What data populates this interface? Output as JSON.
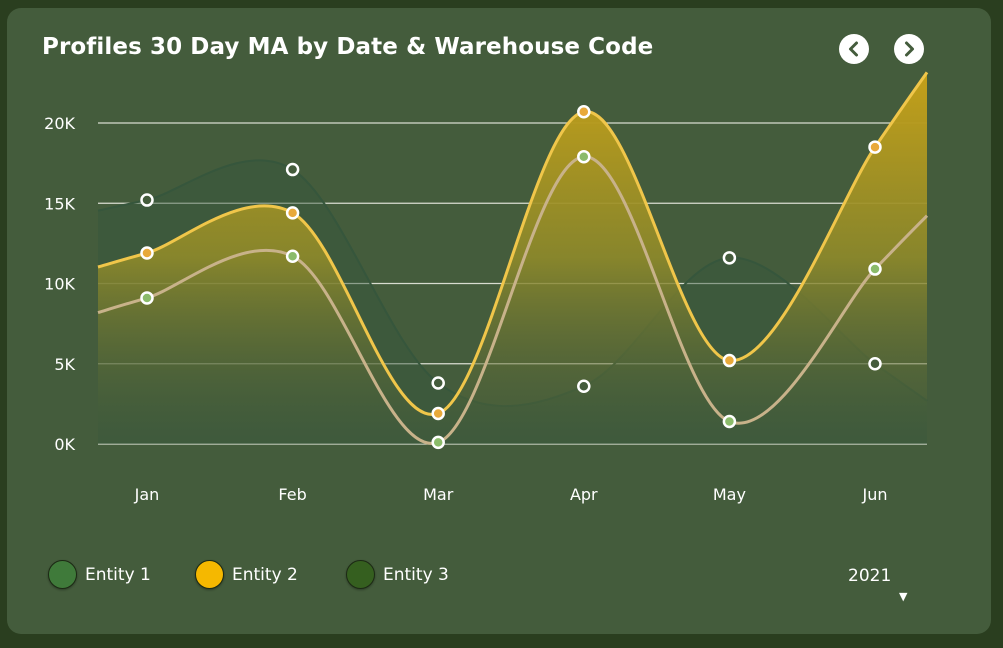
{
  "title": "Profiles 30 Day MA by Date & Warehouse Code",
  "nav": {
    "prev_icon": "chevron-left-icon",
    "next_icon": "chevron-right-icon"
  },
  "colors": {
    "background": "#2a3e1f",
    "card": "#445c3c",
    "entity1": "#3f7a3a",
    "entity2": "#f5b800",
    "entity3": "#355f1f",
    "line_entity1": "#36563c",
    "line_entity2": "#f0c64a",
    "line_entity3": "#c8b28a",
    "grid": "#d8dcd0"
  },
  "legend": [
    {
      "label": "Entity 1",
      "color": "#3f7a3a"
    },
    {
      "label": "Entity 2",
      "color": "#f5b800"
    },
    {
      "label": "Entity 3",
      "color": "#355f1f"
    }
  ],
  "year_select": {
    "value": "2021"
  },
  "chart_data": {
    "type": "area",
    "title": "Profiles 30 Day MA by Date & Warehouse Code",
    "categories": [
      "Jan",
      "Feb",
      "Mar",
      "Apr",
      "May",
      "Jun"
    ],
    "yticks": [
      "0K",
      "5K",
      "10K",
      "15K",
      "20K"
    ],
    "ylim": [
      0,
      20000
    ],
    "grid": true,
    "legend_position": "bottom-left",
    "series": [
      {
        "name": "Entity 1",
        "values": [
          15200,
          17100,
          3800,
          3600,
          11600,
          5000
        ]
      },
      {
        "name": "Entity 2",
        "values": [
          11900,
          14400,
          1900,
          20700,
          5200,
          18500
        ]
      },
      {
        "name": "Entity 3",
        "values": [
          9100,
          11700,
          100,
          17900,
          1400,
          10900
        ]
      }
    ]
  }
}
